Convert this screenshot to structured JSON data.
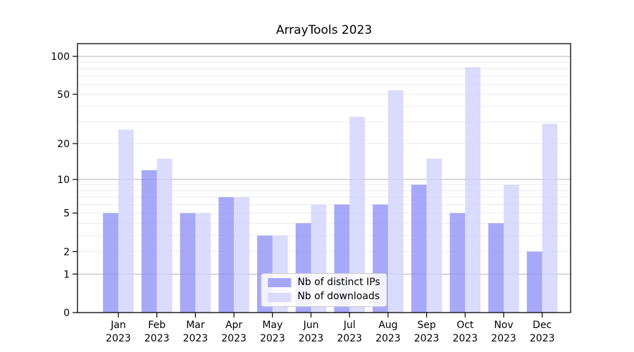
{
  "title": "ArrayTools 2023",
  "chart_data": {
    "type": "bar",
    "categories": [
      "Jan 2023",
      "Feb 2023",
      "Mar 2023",
      "Apr 2023",
      "May 2023",
      "Jun 2023",
      "Jul 2023",
      "Aug 2023",
      "Sep 2023",
      "Oct 2023",
      "Nov 2023",
      "Dec 2023"
    ],
    "series": [
      {
        "key": "distinct-ips",
        "name": "Nb of distinct IPs",
        "color": "#9292f6",
        "values": [
          5,
          12,
          5,
          7,
          3,
          4,
          6,
          6,
          9,
          5,
          4,
          2
        ]
      },
      {
        "key": "downloads",
        "name": "Nb of downloads",
        "color": "#d2d2fc",
        "values": [
          26,
          15,
          5,
          7,
          3,
          6,
          33,
          54,
          15,
          82,
          9,
          29
        ]
      }
    ],
    "bar_alpha": 0.8,
    "yscale": "log1p",
    "ylim": [
      0,
      126
    ],
    "yticks": [
      100,
      50,
      20,
      10,
      5,
      2,
      1,
      0
    ],
    "grid": {
      "major": [
        1,
        10,
        100
      ],
      "minor": [
        2,
        3,
        4,
        5,
        6,
        7,
        8,
        9,
        20,
        30,
        40,
        50,
        60,
        70,
        80,
        90
      ],
      "major_color": "#b5b5b5",
      "minor_color": "#ebebeb"
    },
    "axis_color": "#000000",
    "legend_position": "lower center",
    "xlabel": "",
    "ylabel": ""
  }
}
